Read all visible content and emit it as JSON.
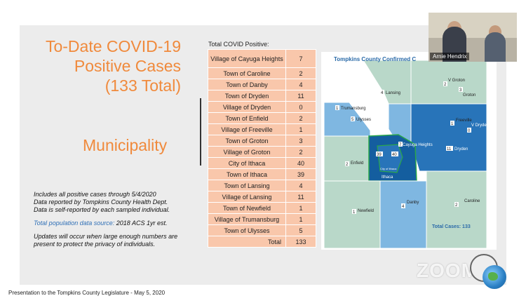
{
  "slide": {
    "title_lines": [
      "To-Date COVID-19",
      "Positive Cases",
      "(133 Total)"
    ],
    "subtitle": "Municipality",
    "notes": {
      "line1": "Includes all positive cases through 5/4/2020",
      "line2": "Data reported by Tompkins County Health Dept.",
      "line3": "Data is self-reported by each sampled individual.",
      "source_label": "Total population data source:",
      "source_value": "2018 ACS 1yr est.",
      "update1": "Updates will occur when large enough numbers are",
      "update2": "present to protect the privacy of individuals."
    },
    "table_title": "Total COVID Positive:",
    "table": [
      {
        "name": "Village of Cayuga Heights",
        "value": "7"
      },
      {
        "name": "Town of Caroline",
        "value": "2"
      },
      {
        "name": "Town of Danby",
        "value": "4"
      },
      {
        "name": "Town of Dryden",
        "value": "11"
      },
      {
        "name": "Village of Dryden",
        "value": "0"
      },
      {
        "name": "Town of Enfield",
        "value": "2"
      },
      {
        "name": "Village of Freeville",
        "value": "1"
      },
      {
        "name": "Town of Groton",
        "value": "3"
      },
      {
        "name": "Village of Groton",
        "value": "2"
      },
      {
        "name": "City of Ithaca",
        "value": "40"
      },
      {
        "name": "Town of Ithaca",
        "value": "39"
      },
      {
        "name": "Town of Lansing",
        "value": "4"
      },
      {
        "name": "Village of Lansing",
        "value": "11"
      },
      {
        "name": "Town of Newfield",
        "value": "1"
      },
      {
        "name": "Village of Trumansburg",
        "value": "1"
      },
      {
        "name": "Town of Ulysses",
        "value": "5"
      }
    ],
    "total_label": "Total",
    "total_value": "133",
    "map": {
      "title": "Tompkins County Confirmed C",
      "total": "Total Cases: 133",
      "labels": [
        {
          "name": "Lansing",
          "value": "4"
        },
        {
          "name": "Groton",
          "value": "3"
        },
        {
          "name": "V Groton",
          "value": "2"
        },
        {
          "name": "Trumansburg",
          "value": "1"
        },
        {
          "name": "Ulysses",
          "value": "5"
        },
        {
          "name": "Freeville",
          "value": "1"
        },
        {
          "name": "Dryden",
          "value": "11"
        },
        {
          "name": "V Dryden",
          "value": "0"
        },
        {
          "name": "Cayuga Heights",
          "value": "7"
        },
        {
          "name": "Enfield",
          "value": "2"
        },
        {
          "name": "Ithaca",
          "value": "39"
        },
        {
          "name": "City of Ithaca",
          "value": "40"
        },
        {
          "name": "Newfield",
          "value": "1"
        },
        {
          "name": "Danby",
          "value": "4"
        },
        {
          "name": "Caroline",
          "value": "2"
        }
      ]
    }
  },
  "video": {
    "participant_name": "Arnie Hendrix"
  },
  "footer": "Presentation to the Tompkins County Legislature - May 5, 2020",
  "zoom_watermark": "ZOOM",
  "colors": {
    "title_orange": "#f08a3c",
    "table_fill": "#f9c7ab",
    "map_light": "#b9d8c9",
    "map_mid": "#7fb7e1",
    "map_dark": "#2874b9",
    "map_darkest": "#145e9f",
    "map_title_blue": "#2a6aa8"
  }
}
